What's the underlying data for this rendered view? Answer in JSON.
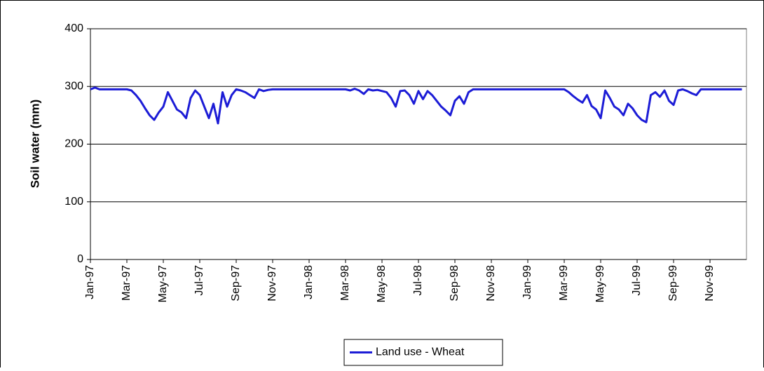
{
  "chart_data": {
    "type": "line",
    "y_label": "Soil water (mm)",
    "categories": [
      "Jan-97",
      null,
      null,
      null,
      null,
      null,
      null,
      null,
      "Mar-97",
      null,
      null,
      null,
      null,
      null,
      null,
      null,
      "May-97",
      null,
      null,
      null,
      null,
      null,
      null,
      null,
      "Jul-97",
      null,
      null,
      null,
      null,
      null,
      null,
      null,
      "Sep-97",
      null,
      null,
      null,
      null,
      null,
      null,
      null,
      "Nov-97",
      null,
      null,
      null,
      null,
      null,
      null,
      null,
      "Jan-98",
      null,
      null,
      null,
      null,
      null,
      null,
      null,
      "Mar-98",
      null,
      null,
      null,
      null,
      null,
      null,
      null,
      "May-98",
      null,
      null,
      null,
      null,
      null,
      null,
      null,
      "Jul-98",
      null,
      null,
      null,
      null,
      null,
      null,
      null,
      "Sep-98",
      null,
      null,
      null,
      null,
      null,
      null,
      null,
      "Nov-98",
      null,
      null,
      null,
      null,
      null,
      null,
      null,
      "Jan-99",
      null,
      null,
      null,
      null,
      null,
      null,
      null,
      "Mar-99",
      null,
      null,
      null,
      null,
      null,
      null,
      null,
      "May-99",
      null,
      null,
      null,
      null,
      null,
      null,
      null,
      "Jul-99",
      null,
      null,
      null,
      null,
      null,
      null,
      null,
      "Sep-99",
      null,
      null,
      null,
      null,
      null,
      null,
      null,
      "Nov-99",
      null,
      null,
      null,
      null,
      null,
      null,
      null
    ],
    "series": [
      {
        "name": "Land use - Wheat",
        "color": "#1c1cd6",
        "values": [
          295,
          298,
          295,
          295,
          295,
          295,
          295,
          295,
          295,
          293,
          285,
          275,
          262,
          250,
          242,
          255,
          265,
          290,
          275,
          260,
          255,
          245,
          280,
          293,
          285,
          265,
          245,
          270,
          236,
          290,
          265,
          285,
          295,
          293,
          290,
          285,
          280,
          295,
          292,
          294,
          295,
          295,
          295,
          295,
          295,
          295,
          295,
          295,
          295,
          295,
          295,
          295,
          295,
          295,
          295,
          295,
          295,
          293,
          296,
          293,
          287,
          295,
          293,
          294,
          292,
          290,
          280,
          265,
          292,
          293,
          285,
          270,
          292,
          278,
          292,
          285,
          275,
          265,
          258,
          250,
          275,
          283,
          270,
          290,
          295,
          295,
          295,
          295,
          295,
          295,
          295,
          295,
          295,
          295,
          295,
          295,
          295,
          295,
          295,
          295,
          295,
          295,
          295,
          295,
          295,
          290,
          283,
          277,
          272,
          285,
          266,
          260,
          245,
          293,
          280,
          265,
          260,
          250,
          270,
          262,
          250,
          242,
          238,
          285,
          290,
          282,
          293,
          275,
          268,
          293,
          295,
          292,
          288,
          285,
          295,
          295,
          295,
          295,
          295,
          295,
          295,
          295,
          295,
          295
        ]
      }
    ],
    "ylim": [
      0,
      400
    ],
    "yticks": [
      0,
      100,
      200,
      300,
      400
    ],
    "grid": true,
    "legend": "bottom"
  }
}
